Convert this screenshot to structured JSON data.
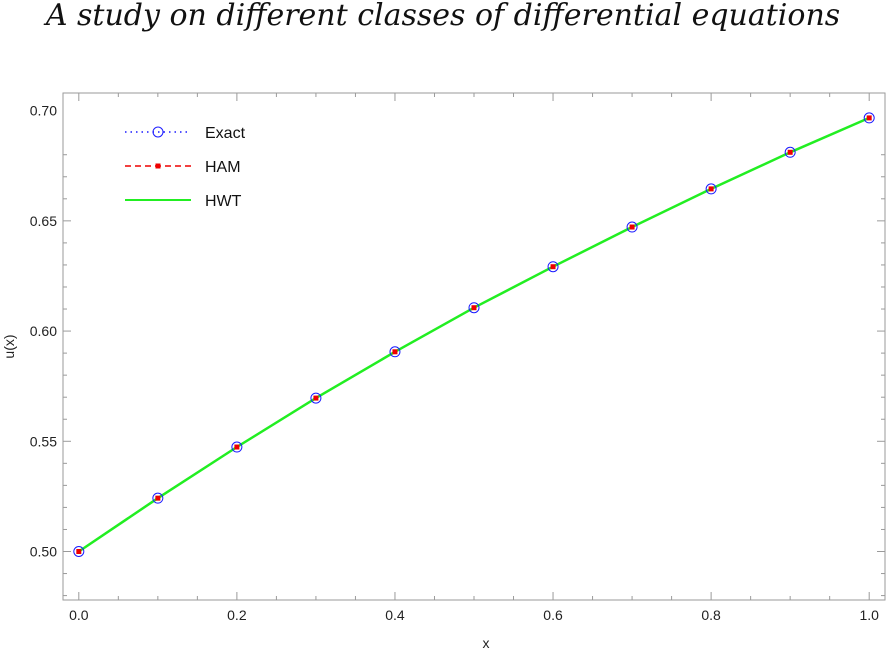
{
  "header": {
    "title": "A study on different classes of differential equations"
  },
  "chart_data": {
    "type": "line",
    "title": "",
    "xlabel": "x",
    "ylabel": "u(x)",
    "xlim": [
      -0.02,
      1.02
    ],
    "ylim": [
      0.478,
      0.708
    ],
    "x_ticks": [
      0.0,
      0.2,
      0.4,
      0.6,
      0.8,
      1.0
    ],
    "x_tick_labels": [
      "0.0",
      "0.2",
      "0.4",
      "0.6",
      "0.8",
      "1.0"
    ],
    "y_ticks": [
      0.5,
      0.55,
      0.6,
      0.65,
      0.7
    ],
    "y_tick_labels": [
      "0.50",
      "0.55",
      "0.60",
      "0.65",
      "0.70"
    ],
    "grid": false,
    "legend_position": "top-left",
    "x": [
      0.0,
      0.1,
      0.2,
      0.3,
      0.4,
      0.5,
      0.6,
      0.7,
      0.8,
      0.9,
      1.0
    ],
    "series": [
      {
        "name": "Exact",
        "color": "#1a1aff",
        "style": "dotted-line-with-open-circle-markers",
        "values": [
          0.5,
          0.5242,
          0.5474,
          0.5696,
          0.5906,
          0.6106,
          0.6292,
          0.6472,
          0.6645,
          0.6811,
          0.6967
        ]
      },
      {
        "name": "HAM",
        "color": "#ee0000",
        "style": "dashed-line-with-square-markers",
        "values": [
          0.5,
          0.5242,
          0.5474,
          0.5696,
          0.5906,
          0.6106,
          0.6292,
          0.6472,
          0.6645,
          0.6811,
          0.6967
        ]
      },
      {
        "name": "HWT",
        "color": "#22ee22",
        "style": "solid-line",
        "values": [
          0.5,
          0.5242,
          0.5474,
          0.5696,
          0.5906,
          0.6106,
          0.6292,
          0.6472,
          0.6645,
          0.6811,
          0.6967
        ]
      }
    ]
  }
}
